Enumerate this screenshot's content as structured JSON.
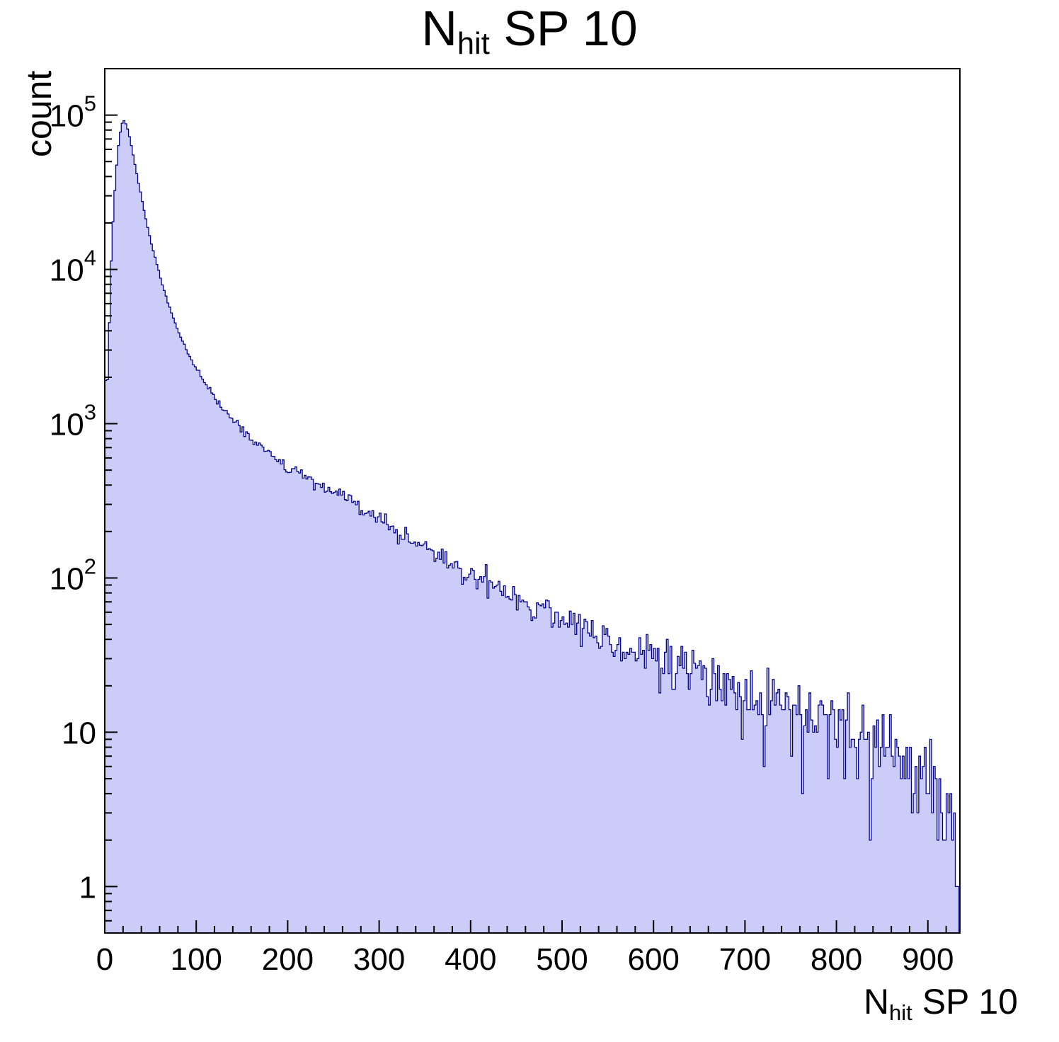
{
  "title": {
    "main": "N",
    "sub": "hit",
    "rest": " SP 10"
  },
  "y_axis_title": "count",
  "x_axis_title": {
    "main": "N",
    "sub": "hit",
    "rest": " SP 10"
  },
  "chart_data": {
    "type": "histogram",
    "title": "N_hit SP 10",
    "xlabel": "N_hit SP 10",
    "ylabel": "count",
    "x_range": [
      0,
      935
    ],
    "y_scale": "log",
    "y_range": [
      0.5,
      200000
    ],
    "x_ticks": [
      0,
      100,
      200,
      300,
      400,
      500,
      600,
      700,
      800,
      900
    ],
    "x_minor_step": 20,
    "y_ticks": [
      1,
      10,
      100,
      1000,
      10000,
      100000
    ],
    "bin_width": 2,
    "noise_seed": 12345,
    "noise_model": "poisson",
    "peak": {
      "x": 20,
      "count": 93000
    },
    "grid": false,
    "legend": false,
    "envelope": [
      [
        0,
        2600
      ],
      [
        2,
        1400
      ],
      [
        4,
        2600
      ],
      [
        6,
        8000
      ],
      [
        8,
        16000
      ],
      [
        10,
        26000
      ],
      [
        12,
        40000
      ],
      [
        14,
        56000
      ],
      [
        16,
        72000
      ],
      [
        18,
        84000
      ],
      [
        20,
        93000
      ],
      [
        22,
        91000
      ],
      [
        24,
        85000
      ],
      [
        26,
        77000
      ],
      [
        28,
        68000
      ],
      [
        30,
        59000
      ],
      [
        32,
        51000
      ],
      [
        34,
        44500
      ],
      [
        36,
        39000
      ],
      [
        38,
        34000
      ],
      [
        40,
        29500
      ],
      [
        44,
        22500
      ],
      [
        48,
        17500
      ],
      [
        52,
        14000
      ],
      [
        56,
        11200
      ],
      [
        60,
        9200
      ],
      [
        65,
        7200
      ],
      [
        70,
        5800
      ],
      [
        75,
        4800
      ],
      [
        80,
        4000
      ],
      [
        85,
        3400
      ],
      [
        90,
        2950
      ],
      [
        95,
        2580
      ],
      [
        100,
        2280
      ],
      [
        110,
        1820
      ],
      [
        120,
        1480
      ],
      [
        130,
        1240
      ],
      [
        140,
        1060
      ],
      [
        150,
        920
      ],
      [
        160,
        805
      ],
      [
        170,
        715
      ],
      [
        180,
        640
      ],
      [
        190,
        572
      ],
      [
        200,
        515
      ],
      [
        215,
        455
      ],
      [
        230,
        412
      ],
      [
        245,
        372
      ],
      [
        260,
        330
      ],
      [
        275,
        292
      ],
      [
        290,
        258
      ],
      [
        300,
        238
      ],
      [
        320,
        200
      ],
      [
        340,
        170
      ],
      [
        360,
        146
      ],
      [
        380,
        123
      ],
      [
        400,
        104
      ],
      [
        420,
        92
      ],
      [
        440,
        81
      ],
      [
        460,
        71
      ],
      [
        480,
        62
      ],
      [
        500,
        55
      ],
      [
        520,
        48
      ],
      [
        540,
        42.5
      ],
      [
        560,
        38
      ],
      [
        580,
        34
      ],
      [
        600,
        30.5
      ],
      [
        620,
        27.5
      ],
      [
        640,
        24.5
      ],
      [
        660,
        22
      ],
      [
        680,
        19.8
      ],
      [
        700,
        17.8
      ],
      [
        720,
        16
      ],
      [
        740,
        14.4
      ],
      [
        760,
        13
      ],
      [
        780,
        11.6
      ],
      [
        800,
        10.4
      ],
      [
        820,
        9.4
      ],
      [
        840,
        8.4
      ],
      [
        860,
        7.5
      ],
      [
        880,
        6.6
      ],
      [
        900,
        5.6
      ],
      [
        910,
        4.8
      ],
      [
        918,
        3.6
      ],
      [
        926,
        2.2
      ],
      [
        934,
        1.1
      ]
    ],
    "colors": {
      "fill": "#ccccf8",
      "line": "#00008b",
      "frame": "#000000",
      "text": "#000000"
    }
  }
}
